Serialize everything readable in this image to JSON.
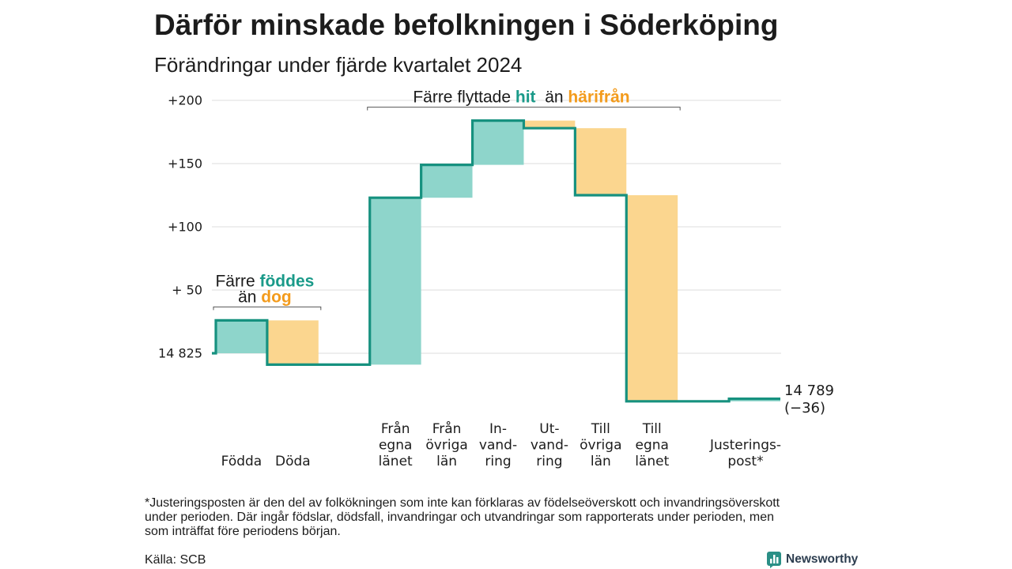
{
  "title": "Därför minskade befolkningen i Söderköping",
  "subtitle": "Förändringar under fjärde kvartalet 2024",
  "colors": {
    "text": "#1c1c1c",
    "line": "#16917f",
    "inflow_fill": "#8ed5cb",
    "outflow_fill": "#fbd68f",
    "inflow_text": "#1a9a89",
    "outflow_text": "#f39b1c",
    "grid": "#dcdcdc",
    "bracket": "#555555",
    "logo": "#2a8f86",
    "logo_text": "#2d3e50"
  },
  "chart_data": {
    "type": "bar",
    "waterfall": true,
    "baseline_value": 14825,
    "ylim": [
      -50,
      200
    ],
    "grid": true,
    "yticks": [
      {
        "value": 200,
        "label": "+200"
      },
      {
        "value": 150,
        "label": "+150"
      },
      {
        "value": 100,
        "label": "+100"
      },
      {
        "value": 50,
        "label": "+ 50"
      },
      {
        "value": 0,
        "label": "14 825"
      }
    ],
    "categories": [
      {
        "label_lines": [
          "Födda"
        ],
        "value": 26,
        "group": 0
      },
      {
        "label_lines": [
          "Döda"
        ],
        "value": -35,
        "group": 0
      },
      {
        "label_lines": [
          "Från",
          "egna",
          "länet"
        ],
        "value": 132,
        "group": 1
      },
      {
        "label_lines": [
          "Från",
          "övriga",
          "län"
        ],
        "value": 26,
        "group": 1
      },
      {
        "label_lines": [
          "In-",
          "vand-",
          "ring"
        ],
        "value": 35,
        "group": 1
      },
      {
        "label_lines": [
          "Ut-",
          "vand-",
          "ring"
        ],
        "value": -6,
        "group": 1
      },
      {
        "label_lines": [
          "Till",
          "övriga",
          "län"
        ],
        "value": -53,
        "group": 1
      },
      {
        "label_lines": [
          "Till",
          "egna",
          "länet"
        ],
        "value": -163,
        "group": 1
      },
      {
        "label_lines": [
          "Justerings-",
          "post*"
        ],
        "value": 2,
        "group": 2
      }
    ],
    "end": {
      "value": 14789,
      "change": -36,
      "label": "14 789",
      "change_label": "(−36)"
    },
    "annotations": [
      {
        "group": 0,
        "lines": [
          [
            {
              "text": "Färre "
            },
            {
              "text": "föddes",
              "bold": true,
              "color": "#1a9a89"
            }
          ],
          [
            {
              "text": "än "
            },
            {
              "text": "dog",
              "bold": true,
              "color": "#f39b1c"
            }
          ]
        ]
      },
      {
        "group": 1,
        "lines": [
          [
            {
              "text": "Färre flyttade "
            },
            {
              "text": "hit",
              "bold": true,
              "color": "#1a9a89"
            },
            {
              "text": "  än "
            },
            {
              "text": "härifrån",
              "bold": true,
              "color": "#f39b1c"
            }
          ]
        ]
      }
    ]
  },
  "footnote_lines": [
    "*Justeringsposten är den del av folkökningen som inte kan förklaras av födelseöverskott och invandringsöverskott",
    "under perioden. Där ingår födslar, dödsfall, invandringar och utvandringar som rapporterats under perioden, men",
    "som inträffat före periodens början."
  ],
  "source": "Källa: SCB",
  "logo": {
    "text": "Newsworthy",
    "icon": "bar-chart-icon"
  }
}
